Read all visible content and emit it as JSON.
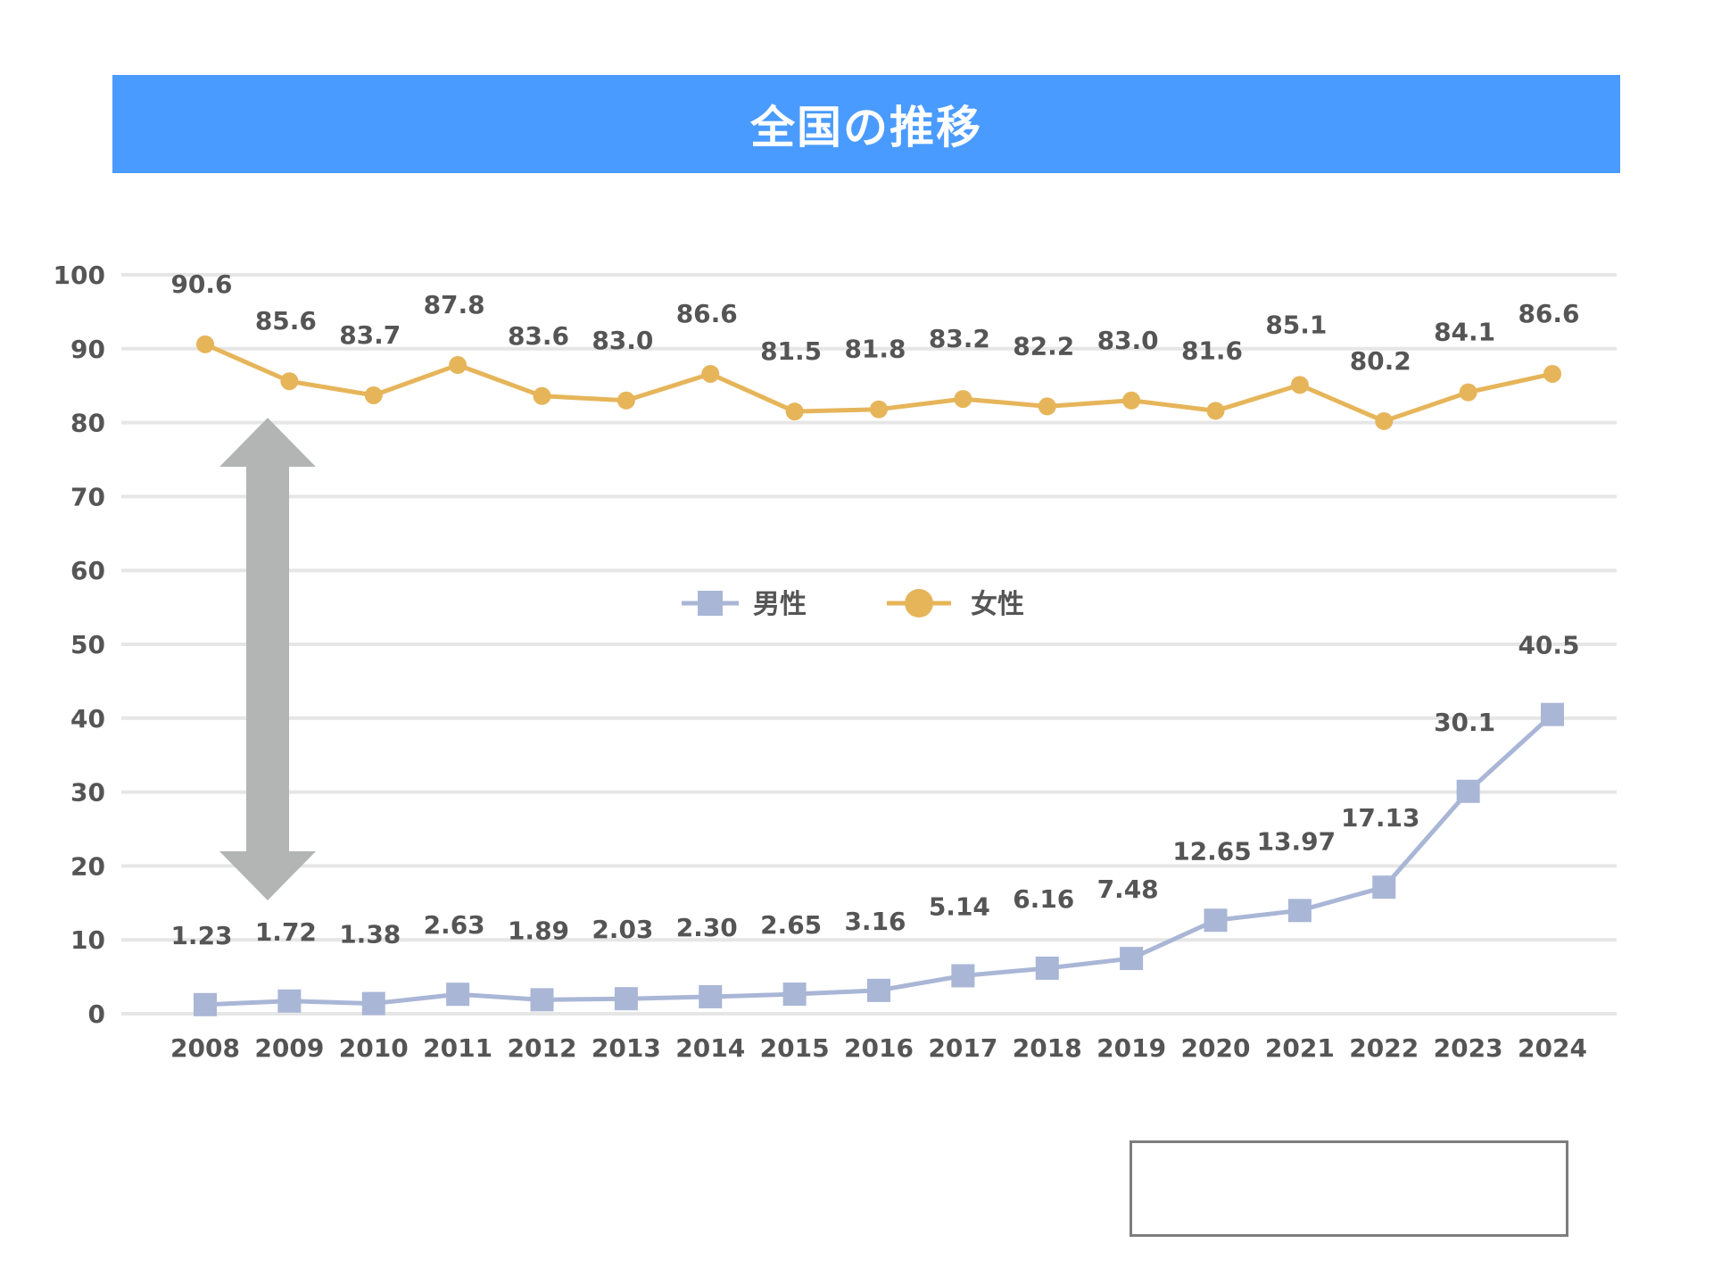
{
  "chart_data": {
    "type": "line",
    "title": "全国の推移",
    "xlabel": "",
    "ylabel": "",
    "ylim": [
      0,
      100
    ],
    "yticks": [
      0,
      10,
      20,
      30,
      40,
      50,
      60,
      70,
      80,
      90,
      100
    ],
    "grid": true,
    "legend_placement": [
      "center",
      "bottom-right"
    ],
    "x": [
      "2008",
      "2009",
      "2010",
      "2011",
      "2012",
      "2013",
      "2014",
      "2015",
      "2016",
      "2017",
      "2018",
      "2019",
      "2020",
      "2021",
      "2022",
      "2023",
      "2024"
    ],
    "series": [
      {
        "name": "男性",
        "marker": "square",
        "color": "#a9b6d6",
        "values": [
          1.23,
          1.72,
          1.38,
          2.63,
          1.89,
          2.03,
          2.3,
          2.65,
          3.16,
          5.14,
          6.16,
          7.48,
          12.65,
          13.97,
          17.13,
          30.1,
          40.5
        ],
        "labels": [
          "1.23",
          "1.72",
          "1.38",
          "2.63",
          "1.89",
          "2.03",
          "2.30",
          "2.65",
          "3.16",
          "5.14",
          "6.16",
          "7.48",
          "12.65",
          "13.97",
          "17.13",
          "30.1",
          "40.5"
        ]
      },
      {
        "name": "女性",
        "marker": "circle",
        "color": "#e6b55a",
        "values": [
          90.6,
          85.6,
          83.7,
          87.8,
          83.6,
          83.0,
          86.6,
          81.5,
          81.8,
          83.2,
          82.2,
          83.0,
          81.6,
          85.1,
          80.2,
          84.1,
          86.6
        ],
        "labels": [
          "90.6",
          "85.6",
          "83.7",
          "87.8",
          "83.6",
          "83.0",
          "86.6",
          "81.5",
          "81.8",
          "83.2",
          "82.2",
          "83.0",
          "81.6",
          "85.1",
          "80.2",
          "84.1",
          "86.6"
        ]
      }
    ],
    "annotation": {
      "type": "double-arrow",
      "color": "#b3b4b4",
      "from_value": 18,
      "to_value": 78
    }
  }
}
